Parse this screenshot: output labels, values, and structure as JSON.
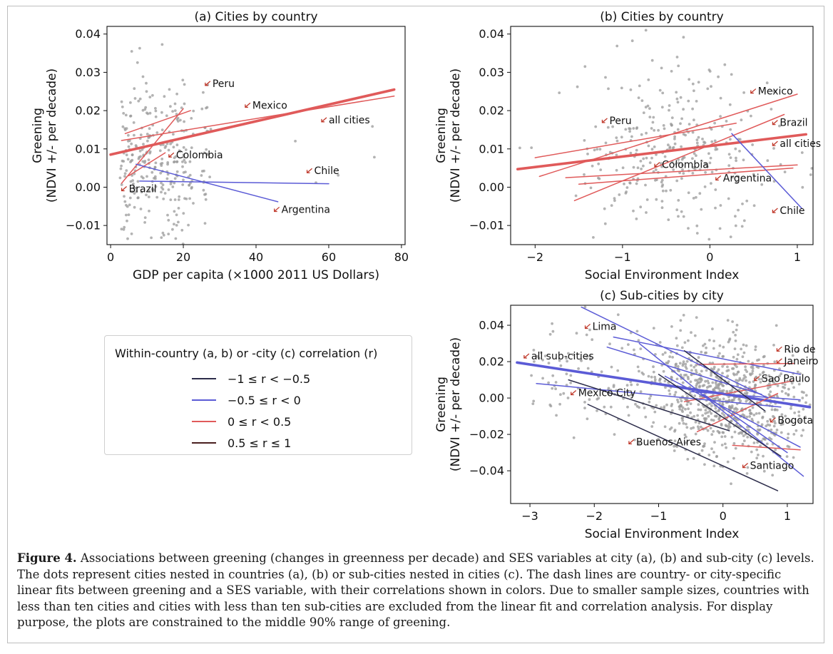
{
  "chart_data": [
    {
      "id": "a",
      "type": "scatter",
      "title": "(a) Cities by country",
      "xlabel": "GDP per capita (×1000 2011 US Dollars)",
      "ylabel_line1": "Greening",
      "ylabel_line2": "(NDVI +/- per decade)",
      "xlim": [
        -1,
        81
      ],
      "ylim": [
        -0.015,
        0.042
      ],
      "xticks": [
        0,
        20,
        40,
        60,
        80
      ],
      "yticks": [
        -0.01,
        0.0,
        0.01,
        0.02,
        0.03,
        0.04
      ],
      "ytick_labels": [
        "−0.01",
        "0.00",
        "0.01",
        "0.02",
        "0.03",
        "0.04"
      ],
      "xtick_labels": [
        "0",
        "20",
        "40",
        "60",
        "80"
      ],
      "lines": [
        {
          "name": "all cities",
          "x": [
            0,
            78
          ],
          "y": [
            0.0085,
            0.0255
          ],
          "corr_class": "0 ≤ r < 0.5",
          "bold": true
        },
        {
          "name": "Mexico",
          "x": [
            3,
            78
          ],
          "y": [
            0.0122,
            0.0238
          ],
          "corr_class": "0 ≤ r < 0.5"
        },
        {
          "name": "Peru",
          "x": [
            4,
            22
          ],
          "y": [
            0.014,
            0.02
          ],
          "corr_class": "0 ≤ r < 0.5"
        },
        {
          "name": "Colombia",
          "x": [
            5,
            15
          ],
          "y": [
            0.003,
            0.009
          ],
          "corr_class": "0 ≤ r < 0.5"
        },
        {
          "name": "Brazil",
          "x": [
            3,
            20
          ],
          "y": [
            0.001,
            0.0205
          ],
          "corr_class": "0 ≤ r < 0.5"
        },
        {
          "name": "Chile",
          "x": [
            8,
            60
          ],
          "y": [
            0.0016,
            0.0009
          ],
          "corr_class": "−0.5 ≤ r < 0"
        },
        {
          "name": "Argentina",
          "x": [
            7,
            46
          ],
          "y": [
            0.006,
            -0.0038
          ],
          "corr_class": "−0.5 ≤ r < 0"
        }
      ],
      "annotations": [
        {
          "text": "Peru",
          "x": 28,
          "y": 0.0262
        },
        {
          "text": "Mexico",
          "x": 39,
          "y": 0.0205
        },
        {
          "text": "all cities",
          "x": 60,
          "y": 0.0167
        },
        {
          "text": "Colombia",
          "x": 18,
          "y": 0.0075
        },
        {
          "text": "Chile",
          "x": 56,
          "y": 0.0034
        },
        {
          "text": "Brazil",
          "x": 5,
          "y": -0.0013
        },
        {
          "text": "Argentina",
          "x": 47,
          "y": -0.0067
        }
      ]
    },
    {
      "id": "b",
      "type": "scatter",
      "title": "(b) Cities by country",
      "xlabel": "Social Environment Index",
      "ylabel_line1": "Greening",
      "ylabel_line2": "(NDVI +/- per decade)",
      "xlim": [
        -2.28,
        1.18
      ],
      "ylim": [
        -0.015,
        0.042
      ],
      "xticks": [
        -2,
        -1,
        0,
        1
      ],
      "xtick_labels": [
        "−2",
        "−1",
        "0",
        "1"
      ],
      "yticks": [
        -0.01,
        0.0,
        0.01,
        0.02,
        0.03,
        0.04
      ],
      "ytick_labels": [
        "−0.01",
        "0.00",
        "0.01",
        "0.02",
        "0.03",
        "0.04"
      ],
      "lines": [
        {
          "name": "all cities",
          "x": [
            -2.2,
            1.1
          ],
          "y": [
            0.0047,
            0.0138
          ],
          "corr_class": "0 ≤ r < 0.5",
          "bold": true
        },
        {
          "name": "Mexico",
          "x": [
            -1.95,
            1.0
          ],
          "y": [
            0.0028,
            0.0243
          ],
          "corr_class": "0 ≤ r < 0.5"
        },
        {
          "name": "Peru",
          "x": [
            -2.0,
            0.3
          ],
          "y": [
            0.0077,
            0.0167
          ],
          "corr_class": "0 ≤ r < 0.5"
        },
        {
          "name": "Brazil",
          "x": [
            -1.5,
            0.95
          ],
          "y": [
            0.0008,
            0.005
          ],
          "corr_class": "0 ≤ r < 0.5"
        },
        {
          "name": "Colombia",
          "x": [
            -1.55,
            0.85
          ],
          "y": [
            -0.0035,
            0.019
          ],
          "corr_class": "0 ≤ r < 0.5"
        },
        {
          "name": "Argentina",
          "x": [
            -1.65,
            1.0
          ],
          "y": [
            0.0025,
            0.0058
          ],
          "corr_class": "0 ≤ r < 0.5"
        },
        {
          "name": "Chile",
          "x": [
            0.25,
            1.05
          ],
          "y": [
            0.014,
            -0.0055
          ],
          "corr_class": "−0.5 ≤ r < 0"
        }
      ],
      "annotations": [
        {
          "text": "Mexico",
          "x": 0.55,
          "y": 0.0242
        },
        {
          "text": "Peru",
          "x": -1.15,
          "y": 0.0165
        },
        {
          "text": "Brazil",
          "x": 0.8,
          "y": 0.016
        },
        {
          "text": "all cities",
          "x": 0.8,
          "y": 0.0105
        },
        {
          "text": "Colombia",
          "x": -0.55,
          "y": 0.005
        },
        {
          "text": "Argentina",
          "x": 0.15,
          "y": 0.0015
        },
        {
          "text": "Chile",
          "x": 0.8,
          "y": -0.007
        }
      ]
    },
    {
      "id": "c",
      "type": "scatter",
      "title": "(c) Sub-cities by city",
      "xlabel": "Social Environment Index",
      "ylabel_line1": "Greening",
      "ylabel_line2": "(NDVI +/- per decade)",
      "xlim": [
        -3.3,
        1.4
      ],
      "ylim": [
        -0.058,
        0.051
      ],
      "xticks": [
        -3,
        -2,
        -1,
        0,
        1
      ],
      "xtick_labels": [
        "−3",
        "−2",
        "−1",
        "0",
        "1"
      ],
      "yticks": [
        -0.04,
        -0.02,
        0.0,
        0.02,
        0.04
      ],
      "ytick_labels": [
        "−0.04",
        "−0.02",
        "0.00",
        "0.02",
        "0.04"
      ],
      "lines": [
        {
          "name": "all sub-cities",
          "x": [
            -3.2,
            1.35
          ],
          "y": [
            0.0195,
            -0.005
          ],
          "corr_class": "−0.5 ≤ r < 0",
          "bold": true
        },
        {
          "name": "Lima",
          "x": [
            -1.7,
            1.2
          ],
          "y": [
            0.0335,
            0.013
          ],
          "corr_class": "−0.5 ≤ r < 0"
        },
        {
          "name": "Rio de Janeiro",
          "x": [
            -0.4,
            1.1
          ],
          "y": [
            0.0185,
            0.019
          ],
          "corr_class": "0 ≤ r < 0.5"
        },
        {
          "name": "Sao Paulo",
          "x": [
            -0.6,
            1.1
          ],
          "y": [
            -0.002,
            0.0095
          ],
          "corr_class": "0 ≤ r < 0.5"
        },
        {
          "name": "Bogota",
          "x": [
            -0.5,
            1.2
          ],
          "y": [
            0.0035,
            -0.001
          ],
          "corr_class": "−0.5 ≤ r < 0"
        },
        {
          "name": "Buenos Aires",
          "x": [
            -0.4,
            0.85
          ],
          "y": [
            -0.0185,
            0.0025
          ],
          "corr_class": "0 ≤ r < 0.5"
        },
        {
          "name": "Santiago",
          "x": [
            0.15,
            1.2
          ],
          "y": [
            -0.026,
            -0.0285
          ],
          "corr_class": "0 ≤ r < 0.5"
        },
        {
          "name": "Mexico City",
          "x": [
            -2.9,
            0.9
          ],
          "y": [
            0.008,
            -0.005
          ],
          "corr_class": "−0.5 ≤ r < 0"
        },
        {
          "name": "",
          "x": [
            -2.2,
            0.7
          ],
          "y": [
            0.05,
            0.0
          ],
          "corr_class": "−0.5 ≤ r < 0"
        },
        {
          "name": "",
          "x": [
            -1.8,
            0.6
          ],
          "y": [
            0.028,
            0.002
          ],
          "corr_class": "−0.5 ≤ r < 0"
        },
        {
          "name": "",
          "x": [
            -1.3,
            1.25
          ],
          "y": [
            0.03,
            -0.043
          ],
          "corr_class": "−0.5 ≤ r < 0"
        },
        {
          "name": "",
          "x": [
            -0.9,
            1.2
          ],
          "y": [
            0.012,
            -0.027
          ],
          "corr_class": "−0.5 ≤ r < 0"
        },
        {
          "name": "",
          "x": [
            -0.3,
            1.0
          ],
          "y": [
            0.002,
            -0.03
          ],
          "corr_class": "−0.5 ≤ r < 0"
        },
        {
          "name": "",
          "x": [
            -2.4,
            0.1
          ],
          "y": [
            0.01,
            -0.018
          ],
          "corr_class": "−1 ≤ r < −0.5"
        },
        {
          "name": "",
          "x": [
            -2.1,
            0.85
          ],
          "y": [
            -0.0035,
            -0.051
          ],
          "corr_class": "−1 ≤ r < −0.5"
        },
        {
          "name": "",
          "x": [
            -0.6,
            0.65
          ],
          "y": [
            0.026,
            -0.007
          ],
          "corr_class": "−1 ≤ r < −0.5"
        },
        {
          "name": "",
          "x": [
            -1.0,
            0.9
          ],
          "y": [
            0.013,
            -0.032
          ],
          "corr_class": "−1 ≤ r < −0.5"
        }
      ],
      "annotations": [
        {
          "text": "Lima",
          "x": -2.03,
          "y": 0.0375
        },
        {
          "text": "all sub-cities",
          "x": -2.98,
          "y": 0.0212
        },
        {
          "text": "Rio de",
          "x": 0.95,
          "y": 0.025
        },
        {
          "text": "Janeiro",
          "x": 0.95,
          "y": 0.0185
        },
        {
          "text": "Sao Paulo",
          "x": 0.6,
          "y": 0.0088
        },
        {
          "text": "Mexico City",
          "x": -2.25,
          "y": 0.001
        },
        {
          "text": "Bogota",
          "x": 0.85,
          "y": -0.014
        },
        {
          "text": "Buenos Aires",
          "x": -1.35,
          "y": -0.026
        },
        {
          "text": "Santiago",
          "x": 0.42,
          "y": -0.039
        }
      ]
    }
  ],
  "legend": {
    "title": "Within-country (a, b) or -city (c) correlation (r)",
    "entries": [
      {
        "label": "−1 ≤ r < −0.5",
        "color": "#2c2c4a"
      },
      {
        "label": "−0.5 ≤ r < 0",
        "color": "#5b5bd6"
      },
      {
        "label": "0 ≤ r < 0.5",
        "color": "#e05a5a"
      },
      {
        "label": "0.5 ≤ r ≤ 1",
        "color": "#4a1f1f"
      }
    ]
  },
  "colors": {
    "points": "#9a9a9a",
    "pos_line": "#e05a5a",
    "neg_line": "#5b5bd6",
    "strong_neg_line": "#2c2c4a",
    "arrow": "#c0392b"
  },
  "caption": {
    "label": "Figure 4.",
    "text": " Associations between greening (changes in greenness per decade) and SES variables at city (a), (b) and sub-city (c) levels. The dots represent cities nested in countries (a), (b) or sub-cities nested in cities (c). The dash lines are country- or city-specific linear fits between greening and a SES variable, with their correlations shown in colors. Due to smaller sample sizes, countries with less than ten cities and cities with less than ten sub-cities are excluded from the linear fit and correlation analysis. For display purpose, the plots are constrained to the middle 90% range of greening."
  }
}
